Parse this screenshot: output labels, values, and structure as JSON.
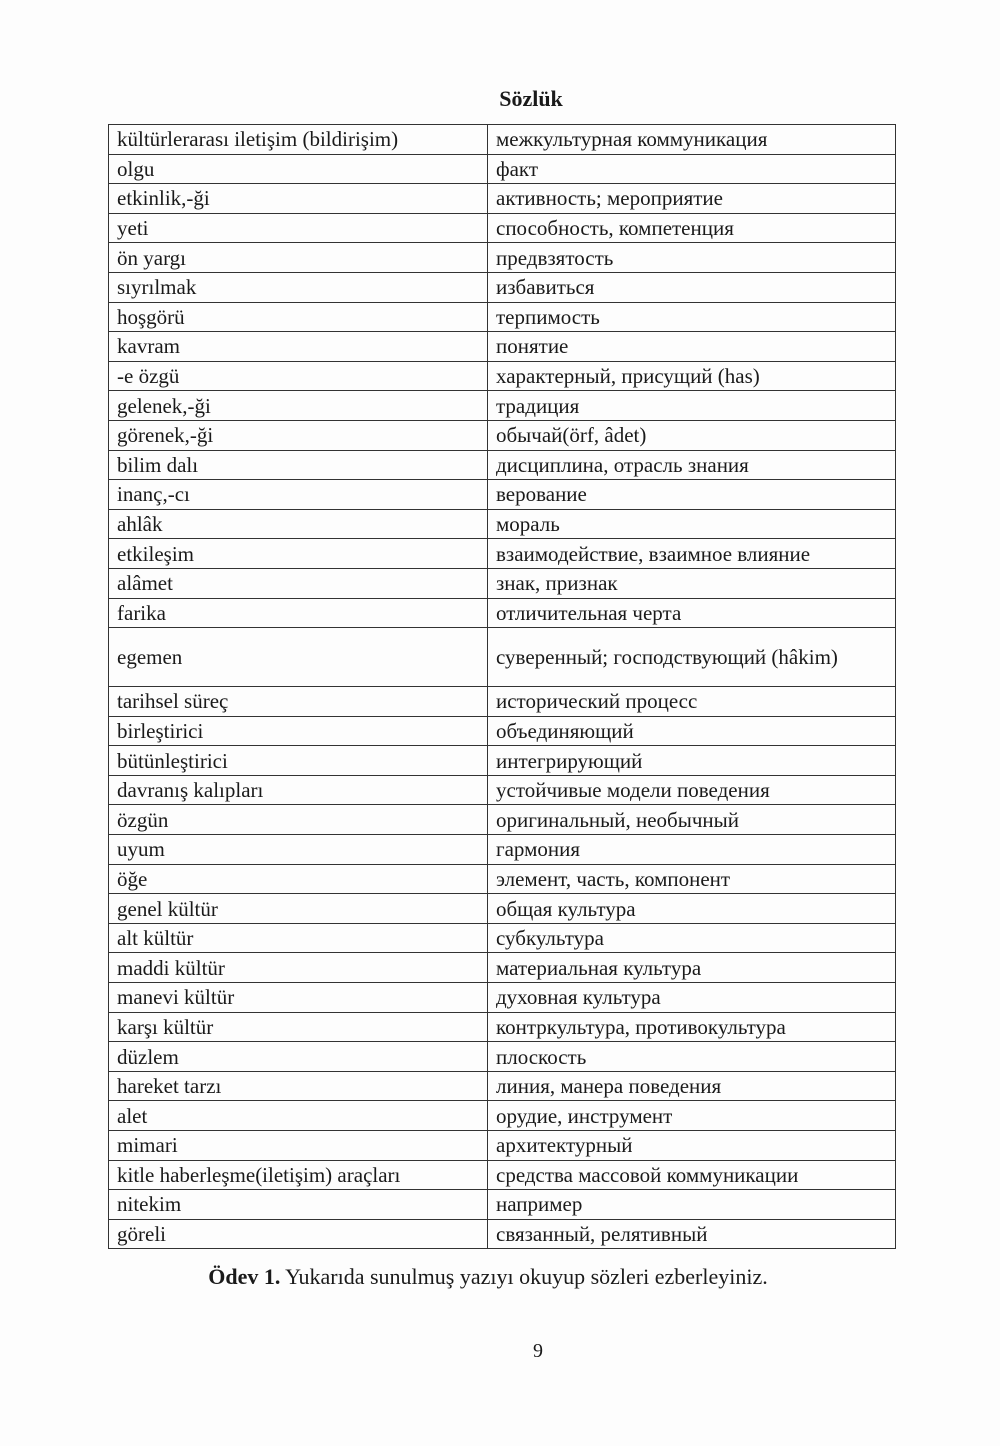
{
  "title": "Sözlük",
  "rows": [
    {
      "tr": "kültürlerarası iletişim (bildirişim)",
      "ru": "межкультурная коммуникация"
    },
    {
      "tr": "olgu",
      "ru": "факт"
    },
    {
      "tr": "etkinlik,-ği",
      "ru": "активность; мероприятие"
    },
    {
      "tr": "yeti",
      "ru": "способность, компетенция"
    },
    {
      "tr": "ön yargı",
      "ru": "предвзятость"
    },
    {
      "tr": "sıyrılmak",
      "ru": "избавиться"
    },
    {
      "tr": "hoşgörü",
      "ru": "терпимость"
    },
    {
      "tr": "kavram",
      "ru": "понятие"
    },
    {
      "tr": "-e özgü",
      "ru": "характерный, присущий (has)"
    },
    {
      "tr": "gelenek,-ği",
      "ru": "традиция"
    },
    {
      "tr": "görenek,-ği",
      "ru": "обычай(örf, âdet)"
    },
    {
      "tr": "bilim dalı",
      "ru": "дисциплина, отрасль знания"
    },
    {
      "tr": "inanç,-cı",
      "ru": "верование"
    },
    {
      "tr": "ahlâk",
      "ru": "мораль"
    },
    {
      "tr": "etkileşim",
      "ru": "взаимодействие, взаимное влияние"
    },
    {
      "tr": "alâmet",
      "ru": "знак, признак"
    },
    {
      "tr": "farika",
      "ru": "отличительная черта"
    },
    {
      "tr": "egemen",
      "ru": "суверенный; господствующий (hâkim)"
    },
    {
      "tr": "tarihsel süreç",
      "ru": "исторический процесс"
    },
    {
      "tr": "birleştirici",
      "ru": "объединяющий"
    },
    {
      "tr": "bütünleştirici",
      "ru": "интегрирующий"
    },
    {
      "tr": "davranış kalıpları",
      "ru": "устойчивые модели поведения"
    },
    {
      "tr": "özgün",
      "ru": "оригинальный, необычный"
    },
    {
      "tr": "uyum",
      "ru": "гармония"
    },
    {
      "tr": "öğe",
      "ru": "элемент, часть, компонент"
    },
    {
      "tr": "genel kültür",
      "ru": "общая культура"
    },
    {
      "tr": "alt kültür",
      "ru": "субкультура"
    },
    {
      "tr": "maddi kültür",
      "ru": "материальная культура"
    },
    {
      "tr": "manevi kültür",
      "ru": "духовная культура"
    },
    {
      "tr": "karşı kültür",
      "ru": "контркультура, противокультура"
    },
    {
      "tr": "düzlem",
      "ru": "плоскость"
    },
    {
      "tr": "hareket tarzı",
      "ru": "линия, манера поведения"
    },
    {
      "tr": "alet",
      "ru": "орудие, инструмент"
    },
    {
      "tr": "mimari",
      "ru": "архитектурный"
    },
    {
      "tr": "kitle haberleşme(iletişim) araçları",
      "ru": "средства массовой коммуникации"
    },
    {
      "tr": "nitekim",
      "ru": "например"
    },
    {
      "tr": "göreli",
      "ru": "связанный, релятивный"
    }
  ],
  "task": {
    "label": "Ödev 1.",
    "text": " Yukarıda sunulmuş yazıyı okuyup sözleri ezberleyiniz."
  },
  "page_number": "9"
}
